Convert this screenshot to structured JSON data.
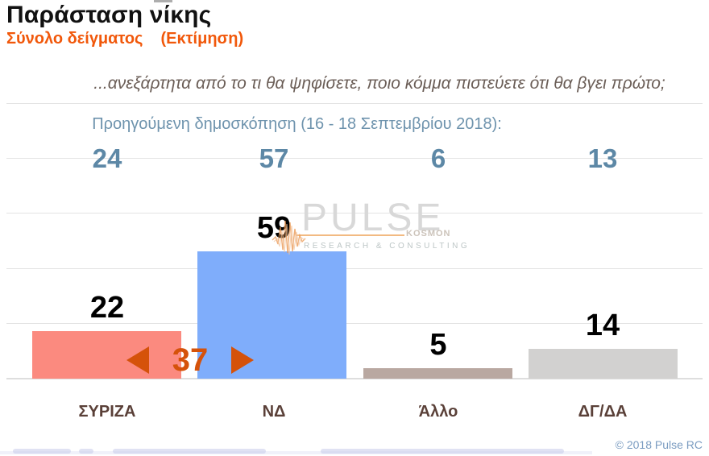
{
  "header": {
    "title": "Παράσταση νίκης",
    "subtitle_sample": "Σύνολο δείγματος",
    "subtitle_estimate": "(Εκτίμηση)",
    "question": "...ανεξάρτητα από το τι θα ψηφίσετε, ποιο κόμμα πιστεύετε ότι θα βγει πρώτο;",
    "previous_label": "Προηγούμενη δημοσκόπηση (16 - 18 Σεπτεμβρίου 2018):"
  },
  "chart_data": {
    "type": "bar",
    "title": "Παράσταση νίκης",
    "subtitle": "Σύνολο δείγματος (Εκτίμηση)",
    "categories": [
      "ΣΥΡΙΖΑ",
      "ΝΔ",
      "Άλλο",
      "ΔΓ/ΔΑ"
    ],
    "series": [
      {
        "name": "Εκτίμηση",
        "values": [
          22,
          59,
          5,
          14
        ]
      },
      {
        "name": "Προηγούμενη δημοσκόπηση (16 - 18 Σεπτεμβρίου 2018)",
        "values": [
          24,
          57,
          6,
          13
        ]
      }
    ],
    "bar_colors": [
      "#fb8a7f",
      "#7fadfb",
      "#b9a8a1",
      "#d2d1d0"
    ],
    "annotation": {
      "value": 37,
      "between": [
        "ΣΥΡΙΖΑ",
        "ΝΔ"
      ],
      "color": "#d5520a"
    },
    "ylim": [
      0,
      65
    ],
    "grid": "horizontal-light",
    "legend": "none",
    "value_labels": "above-bars"
  },
  "watermark": {
    "word": "PULSE",
    "kosmon": "KOSMON",
    "tagline": "RESEARCH & CONSULTING"
  },
  "footer": {
    "copyright": "© 2018 Pulse RC"
  },
  "colors": {
    "accent_orange": "#f1580b",
    "diff_orange": "#d5520a",
    "prev_blue": "#5d88a6",
    "category_brown": "#5a4038"
  }
}
